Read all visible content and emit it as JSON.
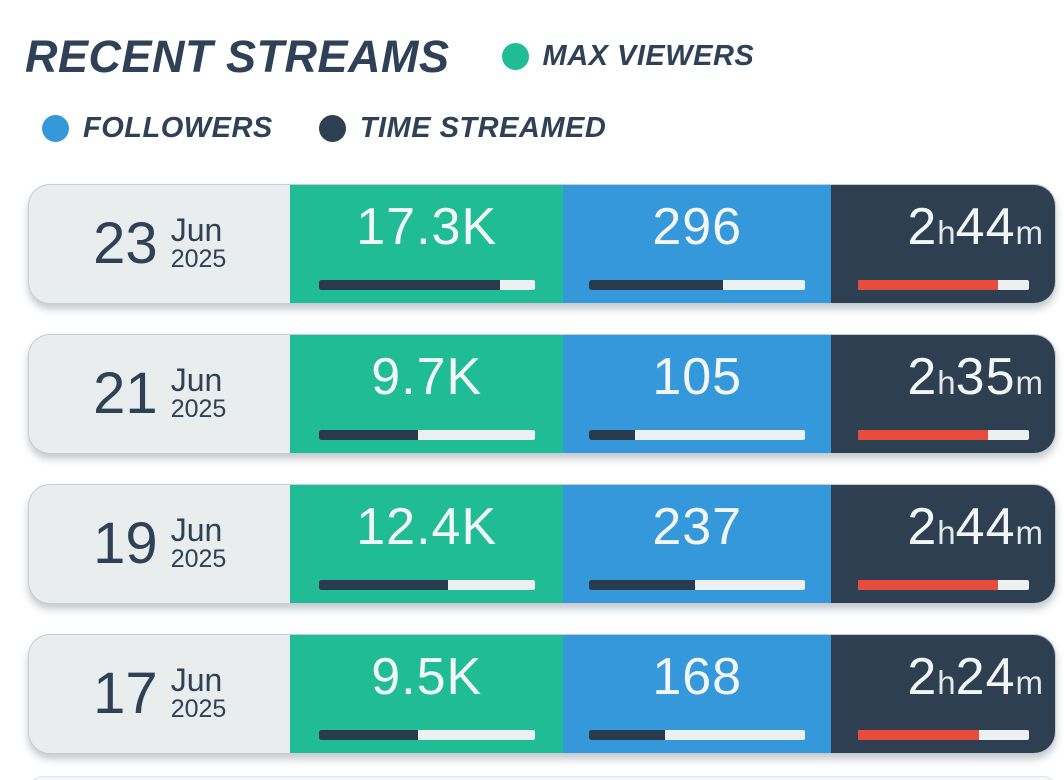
{
  "header": {
    "title": "RECENT STREAMS",
    "legend": [
      {
        "label": "MAX VIEWERS",
        "color": "#20bc96"
      },
      {
        "label": "FOLLOWERS",
        "color": "#3598db"
      },
      {
        "label": "TIME STREAMED",
        "color": "#2d3f51"
      }
    ]
  },
  "units": {
    "hours": "h",
    "minutes": "m"
  },
  "colors": {
    "navy_text": "#2e4156",
    "viewers_panel": "#20bc96",
    "followers_panel": "#3598db",
    "time_panel": "#2d3f51",
    "date_panel": "#e9edee",
    "bar_track": "#ecf0f1",
    "bar_fill_dark": "#293b4d",
    "bar_fill_red": "#e74c3c",
    "value_text": "#f3f6f7"
  },
  "streams": [
    {
      "day": "23",
      "month": "Jun",
      "year": "2025",
      "max_viewers": "17.3K",
      "max_viewers_pct": 84,
      "followers": "296",
      "followers_pct": 62,
      "time_hours": "2",
      "time_minutes": "44",
      "time_pct": 82
    },
    {
      "day": "21",
      "month": "Jun",
      "year": "2025",
      "max_viewers": "9.7K",
      "max_viewers_pct": 46,
      "followers": "105",
      "followers_pct": 21,
      "time_hours": "2",
      "time_minutes": "35",
      "time_pct": 76
    },
    {
      "day": "19",
      "month": "Jun",
      "year": "2025",
      "max_viewers": "12.4K",
      "max_viewers_pct": 60,
      "followers": "237",
      "followers_pct": 49,
      "time_hours": "2",
      "time_minutes": "44",
      "time_pct": 82
    },
    {
      "day": "17",
      "month": "Jun",
      "year": "2025",
      "max_viewers": "9.5K",
      "max_viewers_pct": 46,
      "followers": "168",
      "followers_pct": 35,
      "time_hours": "2",
      "time_minutes": "24",
      "time_pct": 71
    }
  ],
  "chart_data": {
    "type": "table",
    "title": "RECENT STREAMS",
    "legend_position": "top",
    "categories": [
      "23 Jun 2025",
      "21 Jun 2025",
      "19 Jun 2025",
      "17 Jun 2025"
    ],
    "series": [
      {
        "name": "MAX VIEWERS",
        "values": [
          17300,
          9700,
          12400,
          9500
        ],
        "labels": [
          "17.3K",
          "9.7K",
          "12.4K",
          "9.5K"
        ],
        "color": "#20bc96"
      },
      {
        "name": "FOLLOWERS",
        "values": [
          296,
          105,
          237,
          168
        ],
        "labels": [
          "296",
          "105",
          "237",
          "168"
        ],
        "color": "#3598db"
      },
      {
        "name": "TIME STREAMED",
        "values": [
          164,
          155,
          164,
          144
        ],
        "labels": [
          "2h44m",
          "2h35m",
          "2h44m",
          "2h24m"
        ],
        "unit": "minutes",
        "color": "#2d3f51"
      }
    ],
    "bar_fill_pct": {
      "max_viewers": [
        84,
        46,
        60,
        46
      ],
      "followers": [
        62,
        21,
        49,
        35
      ],
      "time_streamed": [
        82,
        76,
        82,
        71
      ]
    }
  }
}
